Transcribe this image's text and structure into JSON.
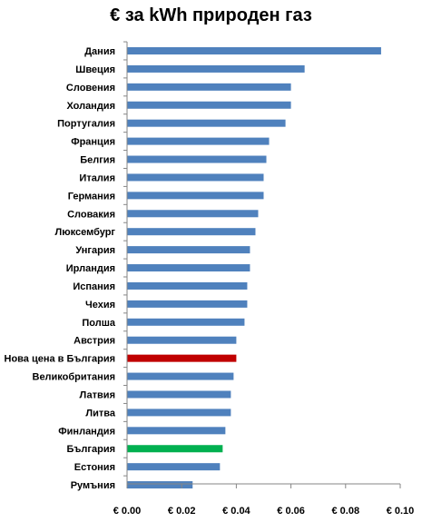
{
  "chart_data": {
    "type": "bar",
    "orientation": "horizontal",
    "title": "€ за kWh природен газ",
    "xlabel": "",
    "ylabel": "",
    "categories": [
      "Дания",
      "Швеция",
      "Словения",
      "Холандия",
      "Португалия",
      "Франция",
      "Белгия",
      "Италия",
      "Германия",
      "Словакия",
      "Люксембург",
      "Унгария",
      "Ирландия",
      "Испания",
      "Чехия",
      "Полша",
      "Австрия",
      "Нова цена в България",
      "Великобритания",
      "Латвия",
      "Литва",
      "Финландия",
      "България",
      "Естония",
      "Румъния"
    ],
    "values": [
      0.093,
      0.065,
      0.06,
      0.06,
      0.058,
      0.052,
      0.051,
      0.05,
      0.05,
      0.048,
      0.047,
      0.045,
      0.045,
      0.044,
      0.044,
      0.043,
      0.04,
      0.04,
      0.039,
      0.038,
      0.038,
      0.036,
      0.035,
      0.034,
      0.024
    ],
    "bar_colors": [
      "#4f81bd",
      "#4f81bd",
      "#4f81bd",
      "#4f81bd",
      "#4f81bd",
      "#4f81bd",
      "#4f81bd",
      "#4f81bd",
      "#4f81bd",
      "#4f81bd",
      "#4f81bd",
      "#4f81bd",
      "#4f81bd",
      "#4f81bd",
      "#4f81bd",
      "#4f81bd",
      "#4f81bd",
      "#c00000",
      "#4f81bd",
      "#4f81bd",
      "#4f81bd",
      "#4f81bd",
      "#00b050",
      "#4f81bd",
      "#4f81bd"
    ],
    "xlim": [
      0,
      0.1
    ],
    "xticks": [
      0,
      0.02,
      0.04,
      0.06,
      0.08,
      0.1
    ],
    "xtick_labels": [
      "€ 0.00",
      "€ 0.02",
      "€ 0.04",
      "€ 0.06",
      "€ 0.08",
      "€ 0.10"
    ],
    "grid": false,
    "legend": "none"
  }
}
